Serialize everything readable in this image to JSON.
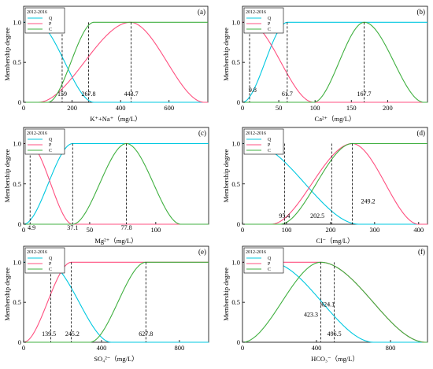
{
  "figure": {
    "ylabel": "Membership degree",
    "legend_title": "2012-2016",
    "legend_names": [
      "Q",
      "P",
      "C"
    ],
    "colors": {
      "Q": "#00c8e0",
      "P": "#ff5080",
      "C": "#40b040"
    }
  },
  "chart_data": [
    {
      "type": "line",
      "panel": "(a)",
      "xlabel": "K⁺+Na⁺（mg/L）",
      "xlim": [
        0,
        760
      ],
      "ylim": [
        0,
        1.2
      ],
      "xticks": [
        0,
        200,
        400,
        600
      ],
      "yticks": [
        "0",
        "0.5",
        "1.0"
      ],
      "legend_position": "top-left",
      "series": [
        {
          "key": "Q",
          "kind": "z",
          "a": 50,
          "b": 290
        },
        {
          "key": "P",
          "kind": "pi",
          "a": 60,
          "b": 440,
          "c": 745
        },
        {
          "key": "C",
          "kind": "s",
          "a": 100,
          "b": 290
        }
      ],
      "dashed_x": [
        159,
        267.8,
        443.7
      ],
      "annotations": [
        {
          "text": "159",
          "x": 159,
          "y": 0.08
        },
        {
          "text": "267.8",
          "x": 267.8,
          "y": 0.08
        },
        {
          "text": "443.7",
          "x": 443.7,
          "y": 0.08
        }
      ]
    },
    {
      "type": "line",
      "panel": "(b)",
      "xlabel": "Ca²⁺（mg/L）",
      "xlim": [
        0,
        255
      ],
      "ylim": [
        0,
        1.2
      ],
      "xticks": [
        0,
        50,
        100,
        150,
        200
      ],
      "yticks": [
        "0",
        "0.5",
        "1.0"
      ],
      "legend_position": "top-left",
      "series": [
        {
          "key": "Q",
          "kind": "s",
          "a": 0,
          "b": 62
        },
        {
          "key": "P",
          "kind": "z",
          "a": 8,
          "b": 98
        },
        {
          "key": "C",
          "kind": "pi",
          "a": 98,
          "b": 168,
          "c": 250
        }
      ],
      "dashed_x": [
        9.8,
        61.7,
        167.7
      ],
      "annotations": [
        {
          "text": "9.8",
          "x": 14,
          "y": 0.13
        },
        {
          "text": "61.7",
          "x": 61.7,
          "y": 0.08
        },
        {
          "text": "167.7",
          "x": 167.7,
          "y": 0.08
        }
      ]
    },
    {
      "type": "line",
      "panel": "(c)",
      "xlabel": "Mg²⁺（mg/L）",
      "xlim": [
        0,
        140
      ],
      "ylim": [
        0,
        1.2
      ],
      "xticks": [
        0,
        50,
        100
      ],
      "yticks": [
        "0",
        "0.5",
        "1.0"
      ],
      "legend_position": "top-left",
      "series": [
        {
          "key": "Q",
          "kind": "s",
          "a": 0,
          "b": 37.1
        },
        {
          "key": "P",
          "kind": "z",
          "a": 4,
          "b": 37.1
        },
        {
          "key": "C",
          "kind": "pi",
          "a": 37.1,
          "b": 77.8,
          "c": 119
        }
      ],
      "dashed_x": [
        4.9,
        37.1,
        77.8
      ],
      "annotations": [
        {
          "text": "4.9",
          "x": 6,
          "y": -0.07
        },
        {
          "text": "37.1",
          "x": 37.1,
          "y": -0.07
        },
        {
          "text": "77.8",
          "x": 77.8,
          "y": -0.07
        }
      ]
    },
    {
      "type": "line",
      "panel": "(d)",
      "xlabel": "Cl⁻（mg/L）",
      "xlim": [
        0,
        420
      ],
      "ylim": [
        0,
        1.2
      ],
      "xticks": [
        0,
        100,
        200,
        300,
        400
      ],
      "yticks": [
        "0",
        "0.5",
        "1.0"
      ],
      "legend_position": "top-left",
      "series": [
        {
          "key": "Q",
          "kind": "z",
          "a": 20,
          "b": 265
        },
        {
          "key": "P",
          "kind": "pi",
          "a": 65,
          "b": 249.2,
          "c": 400
        },
        {
          "key": "C",
          "kind": "s",
          "a": 85,
          "b": 249.2
        }
      ],
      "dashed_x": [
        95.4,
        202.5,
        249.2
      ],
      "annotations": [
        {
          "text": "95.4",
          "x": 95.4,
          "y": 0.08
        },
        {
          "text": "202.5",
          "x": 170,
          "y": 0.08
        },
        {
          "text": "249.2",
          "x": 285,
          "y": 0.26
        }
      ]
    },
    {
      "type": "line",
      "panel": "(e)",
      "xlabel": "SO₄²⁻（mg/L）",
      "xlim": [
        0,
        950
      ],
      "ylim": [
        0,
        1.2
      ],
      "xticks": [
        0,
        400,
        800
      ],
      "yticks": [
        "0",
        "0.5",
        "1.0"
      ],
      "legend_position": "top-left",
      "series": [
        {
          "key": "Q",
          "kind": "z",
          "a": 120,
          "b": 450
        },
        {
          "key": "P",
          "kind": "s",
          "a": 0,
          "b": 245
        },
        {
          "key": "C",
          "kind": "s",
          "a": 340,
          "b": 627.8
        }
      ],
      "dashed_x": [
        139.5,
        245.2,
        627.8
      ],
      "annotations": [
        {
          "text": "139.5",
          "x": 130,
          "y": 0.08
        },
        {
          "text": "245.2",
          "x": 250,
          "y": 0.08
        },
        {
          "text": "627.8",
          "x": 627.8,
          "y": 0.08
        }
      ]
    },
    {
      "type": "line",
      "panel": "(f)",
      "xlabel": "HCO₃⁻（mg/L）",
      "xlim": [
        0,
        1000
      ],
      "ylim": [
        0,
        1.2
      ],
      "xticks": [
        0,
        400,
        800
      ],
      "yticks": [
        "0",
        "0.5",
        "1.0"
      ],
      "legend_position": "top-left",
      "series": [
        {
          "key": "Q",
          "kind": "z",
          "a": 150,
          "b": 710
        },
        {
          "key": "P",
          "kind": "z",
          "a": 423,
          "b": 990
        },
        {
          "key": "C",
          "kind": "pi",
          "a": 0,
          "b": 423,
          "c": 990
        }
      ],
      "dashed_x": [
        423.3,
        496.5
      ],
      "annotations": [
        {
          "text": "424.1",
          "x": 460,
          "y": 0.45
        },
        {
          "text": "423.3",
          "x": 370,
          "y": 0.32
        },
        {
          "text": "496.5",
          "x": 496.5,
          "y": 0.08
        }
      ]
    }
  ]
}
